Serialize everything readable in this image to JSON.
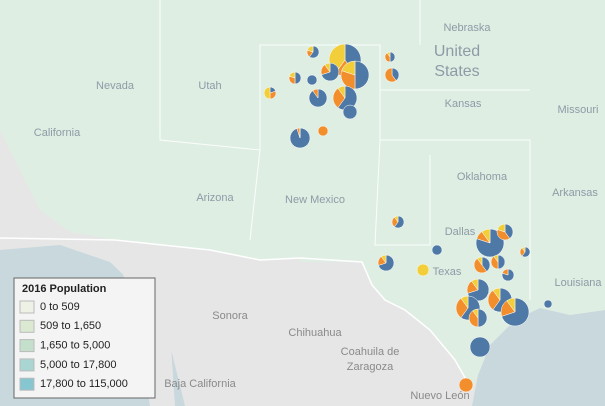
{
  "map": {
    "region_labels": [
      "Nebraska",
      "Kansas",
      "Missouri",
      "Nevada",
      "Utah",
      "California",
      "Arizona",
      "New Mexico",
      "Oklahoma",
      "Arkansas",
      "Texas",
      "Dallas",
      "Louisiana"
    ],
    "country_label": [
      "United",
      "States"
    ],
    "mexico_labels": [
      "Sonora",
      "Chihuahua",
      "Coahuila de",
      "Zaragoza",
      "Baja California",
      "Nuevo León"
    ],
    "legend": {
      "title": "2016 Population",
      "items": [
        {
          "label": "0 to 509",
          "color": "#eef1e6"
        },
        {
          "label": "509 to 1,650",
          "color": "#dbe9d2"
        },
        {
          "label": "1,650 to 5,000",
          "color": "#c4e0cc"
        },
        {
          "label": "5,000 to 17,800",
          "color": "#a9d6d2"
        },
        {
          "label": "17,800 to 115,000",
          "color": "#86c6d0"
        }
      ]
    }
  }
}
